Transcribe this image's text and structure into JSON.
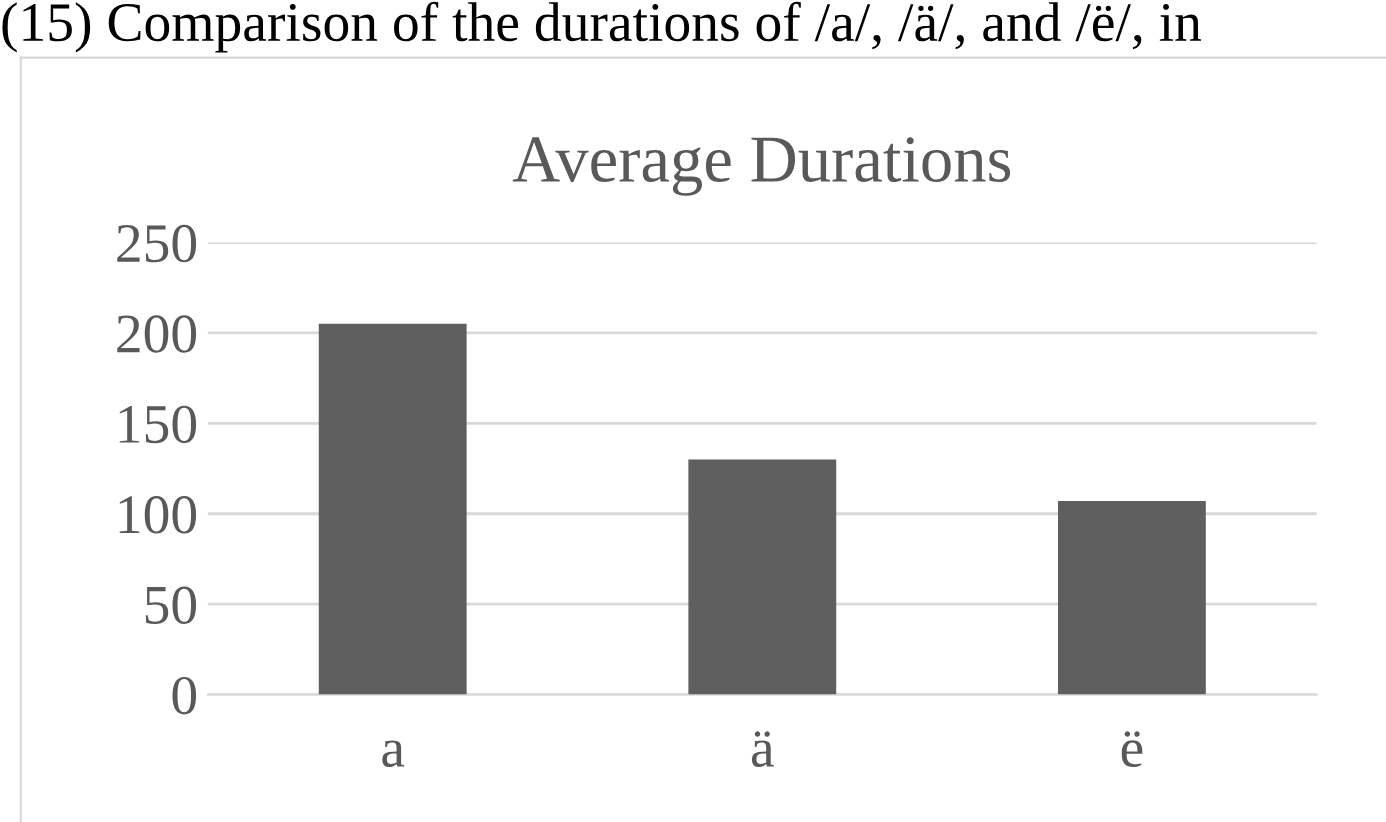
{
  "chart_data": {
    "type": "bar",
    "title": "Average Durations",
    "annotations": [
      "(15) Comparison of the durations of /a/, /ä/, and /ë/, in"
    ],
    "categories": [
      "a",
      "ä",
      "ë"
    ],
    "values": [
      205,
      130,
      107
    ],
    "color": "#5f5f5f",
    "ylim": [
      0,
      250
    ],
    "yticks": [
      0,
      50,
      100,
      150,
      200,
      250
    ],
    "grid": "y"
  }
}
